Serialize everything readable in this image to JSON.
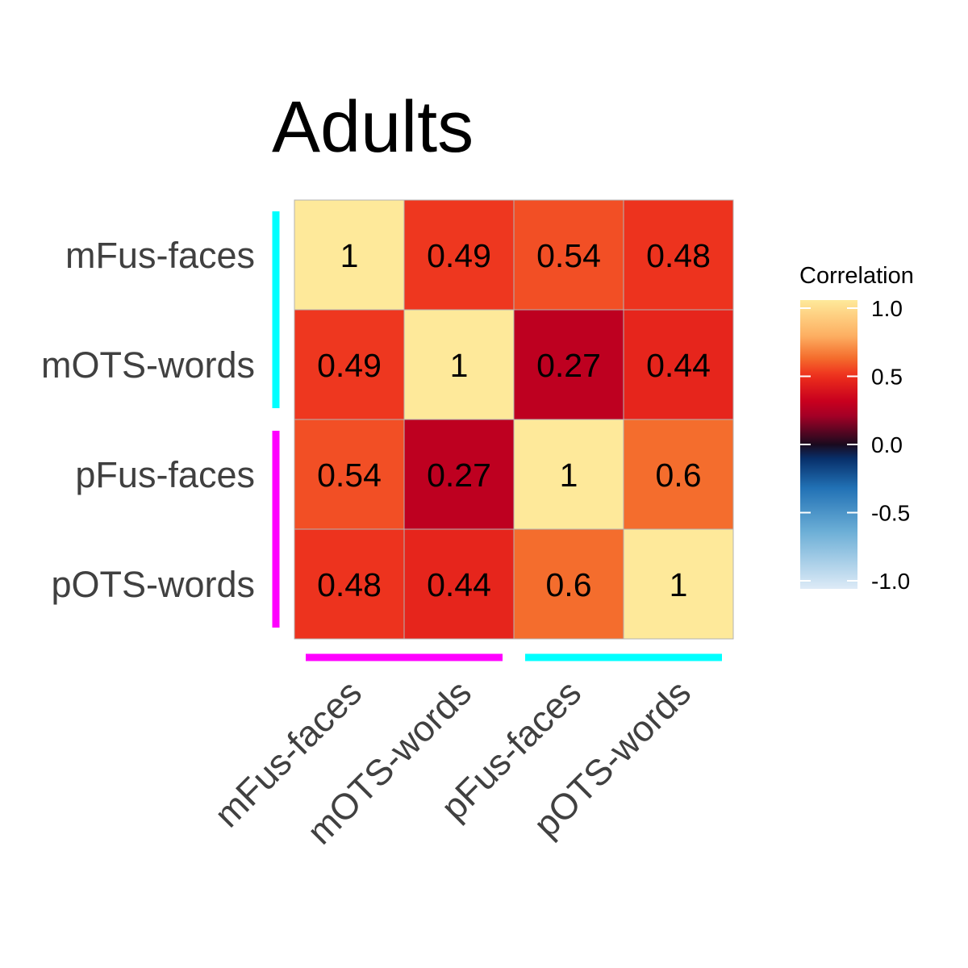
{
  "chart_data": {
    "type": "heatmap",
    "title": "Adults",
    "rows": [
      "mFus-faces",
      "mOTS-words",
      "pFus-faces",
      "pOTS-words"
    ],
    "columns": [
      "mFus-faces",
      "mOTS-words",
      "pFus-faces",
      "pOTS-words"
    ],
    "values": [
      [
        1,
        0.49,
        0.54,
        0.48
      ],
      [
        0.49,
        1,
        0.27,
        0.44
      ],
      [
        0.54,
        0.27,
        1,
        0.6
      ],
      [
        0.48,
        0.44,
        0.6,
        1
      ]
    ],
    "cell_labels": [
      [
        "1",
        "0.49",
        "0.54",
        "0.48"
      ],
      [
        "0.49",
        "1",
        "0.27",
        "0.44"
      ],
      [
        "0.54",
        "0.27",
        "1",
        "0.6"
      ],
      [
        "0.48",
        "0.44",
        "0.6",
        "1"
      ]
    ],
    "legend": {
      "title": "Correlation",
      "range": [
        -1.0,
        1.0
      ],
      "ticks": [
        "1.0",
        "0.5",
        "0.0",
        "-0.5",
        "-1.0"
      ],
      "tick_values": [
        1.0,
        0.5,
        0.0,
        -0.5,
        -1.0
      ],
      "placement": "right"
    },
    "colorscale": {
      "stops": [
        {
          "v": -1.0,
          "color": "#deebf7"
        },
        {
          "v": -0.6,
          "color": "#6baed6"
        },
        {
          "v": -0.3,
          "color": "#2171b5"
        },
        {
          "v": -0.1,
          "color": "#08306b"
        },
        {
          "v": 0.0,
          "color": "#1a0a1e"
        },
        {
          "v": 0.2,
          "color": "#a50026"
        },
        {
          "v": 0.3,
          "color": "#c8001e"
        },
        {
          "v": 0.45,
          "color": "#e8281c"
        },
        {
          "v": 0.5,
          "color": "#f03b20"
        },
        {
          "v": 0.6,
          "color": "#f46d2d"
        },
        {
          "v": 0.75,
          "color": "#fdae61"
        },
        {
          "v": 1.0,
          "color": "#fee99a"
        }
      ]
    },
    "group_bars": {
      "y": [
        {
          "rows": [
            "mFus-faces",
            "mOTS-words"
          ],
          "color": "#00ffff"
        },
        {
          "rows": [
            "pFus-faces",
            "pOTS-words"
          ],
          "color": "#ff00ff"
        }
      ],
      "x": [
        {
          "columns": [
            "mFus-faces",
            "mOTS-words"
          ],
          "color": "#ff00ff"
        },
        {
          "columns": [
            "pFus-faces",
            "pOTS-words"
          ],
          "color": "#00ffff"
        }
      ]
    },
    "grid": false
  }
}
